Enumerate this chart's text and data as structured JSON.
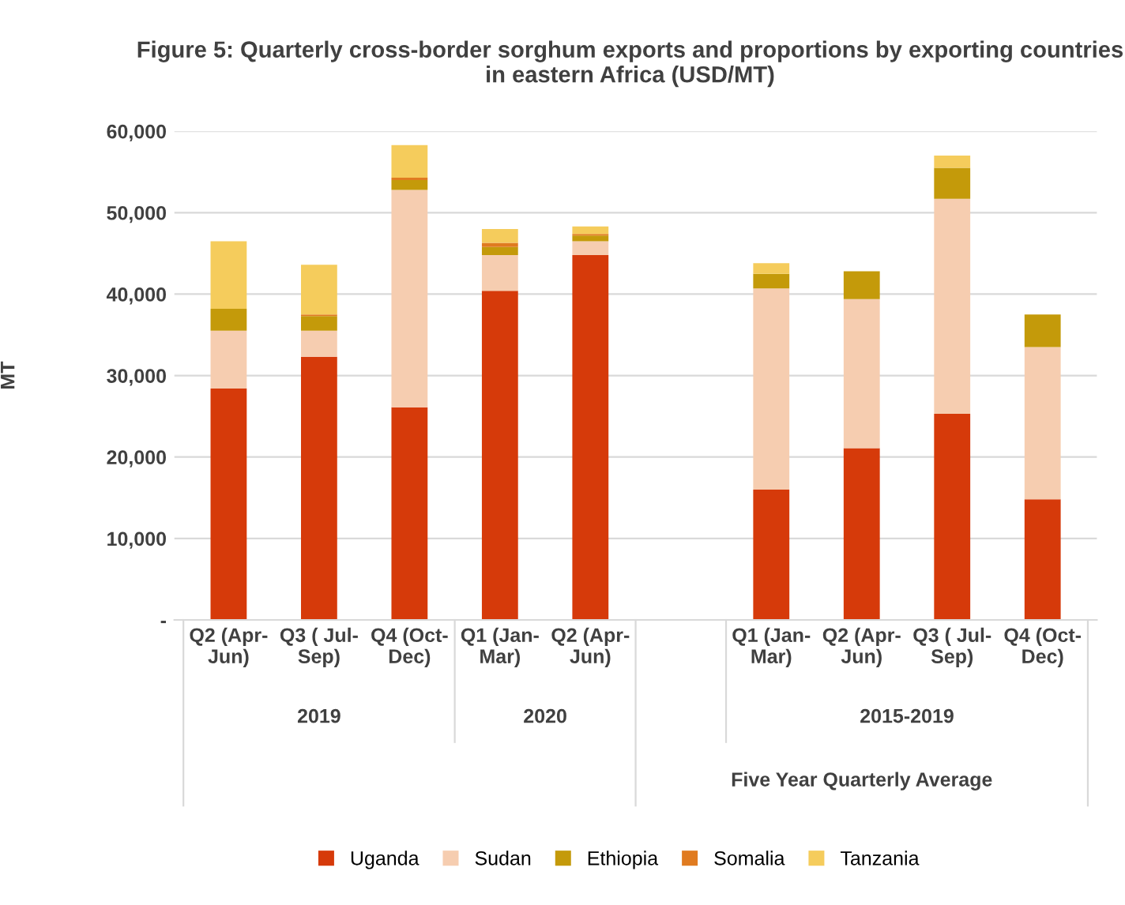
{
  "chart_data": {
    "type": "bar",
    "stacked": true,
    "title": "Figure 5: Quarterly cross-border sorghum exports and proportions by exporting countries in eastern Africa (USD/MT)",
    "ylabel": "MT",
    "categories": [
      "Q2 (Apr-Jun)",
      "Q3 ( Jul-Sep)",
      "Q4 (Oct-Dec)",
      "Q1 (Jan-Mar)",
      "Q2 (Apr-Jun)",
      null,
      "Q1 (Jan-Mar)",
      "Q2 (Apr-Jun)",
      "Q3 ( Jul-Sep)",
      "Q4 (Oct-Dec)"
    ],
    "series": [
      {
        "name": "Uganda",
        "color": "#d63a0a",
        "values": [
          28400,
          32300,
          26100,
          40400,
          44800,
          null,
          16000,
          21100,
          25300,
          14800
        ]
      },
      {
        "name": "Sudan",
        "color": "#f6cdb0",
        "values": [
          7100,
          3200,
          26700,
          4400,
          1700,
          null,
          24700,
          18300,
          26400,
          18700
        ]
      },
      {
        "name": "Ethiopia",
        "color": "#c49a0a",
        "values": [
          2700,
          1800,
          1200,
          1000,
          700,
          null,
          1800,
          3400,
          3800,
          4000
        ]
      },
      {
        "name": "Somalia",
        "color": "#e07b20",
        "values": [
          0,
          200,
          300,
          500,
          200,
          null,
          0,
          0,
          0,
          0
        ]
      },
      {
        "name": "Tanzania",
        "color": "#f5cc5c",
        "values": [
          8300,
          6100,
          4000,
          1700,
          900,
          null,
          1300,
          0,
          1500,
          0
        ]
      }
    ],
    "ylim": [
      0,
      60000
    ],
    "yticks": [
      {
        "value": 0,
        "label": "-"
      },
      {
        "value": 10000,
        "label": "10,000"
      },
      {
        "value": 20000,
        "label": "20,000"
      },
      {
        "value": 30000,
        "label": "30,000"
      },
      {
        "value": 40000,
        "label": "40,000"
      },
      {
        "value": 50000,
        "label": "50,000"
      },
      {
        "value": 60000,
        "label": "60,000"
      }
    ],
    "grid": "y",
    "legend": "bottom",
    "annotations": [
      "2019",
      "2020",
      "2015-2019",
      "Five Year Quarterly Average"
    ]
  }
}
